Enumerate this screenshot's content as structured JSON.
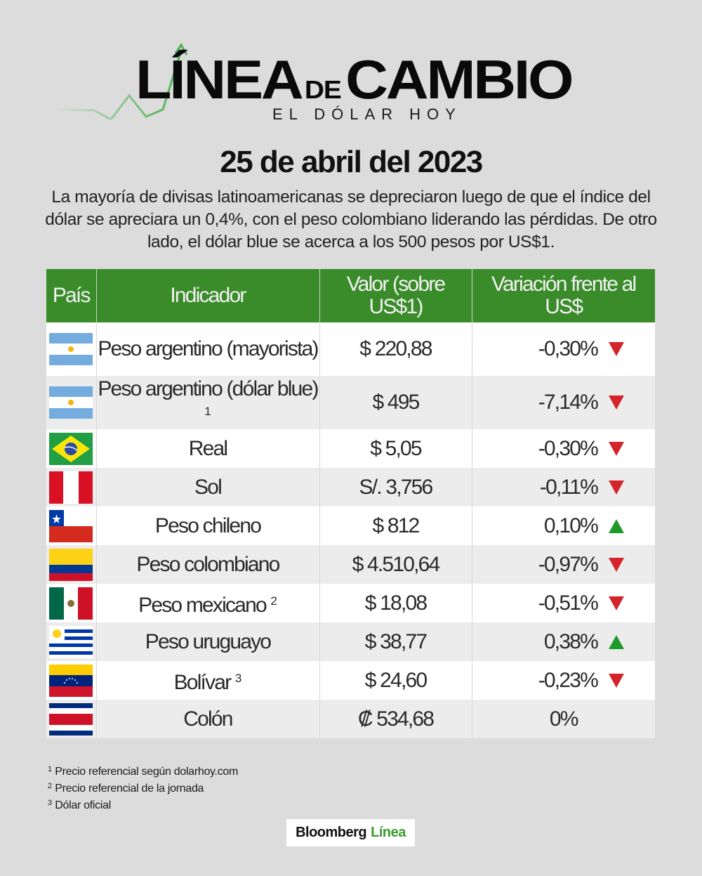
{
  "header": {
    "logo_main_left": "LÍNEA",
    "logo_de": "DE",
    "logo_main_right": "CAMBIO",
    "logo_subtitle": "EL DÓLAR HOY",
    "accent_color": "#3a8b2a"
  },
  "date": "25 de abril del 2023",
  "intro": "La mayoría de divisas latinoamericanas se depreciaron luego de que el índice del dólar se apreciara un 0,4%, con el peso colombiano liderando las pérdidas. De otro lado, el dólar blue se acerca a los 500 pesos por US$1.",
  "table": {
    "headers": [
      "País",
      "Indicador",
      "Valor (sobre US$1)",
      "Variación frente al US$"
    ],
    "rows": [
      {
        "flag": "argentina",
        "indicator": "Peso argentino (mayorista)",
        "note": "",
        "value": "$ 220,88",
        "variation": "-0,30%",
        "direction": "down"
      },
      {
        "flag": "argentina",
        "indicator": "Peso argentino (dólar blue)",
        "note": "1",
        "value": "$ 495",
        "variation": "-7,14%",
        "direction": "down"
      },
      {
        "flag": "brazil",
        "indicator": "Real",
        "note": "",
        "value": "$ 5,05",
        "variation": "-0,30%",
        "direction": "down"
      },
      {
        "flag": "peru",
        "indicator": "Sol",
        "note": "",
        "value": "S/. 3,756",
        "variation": "-0,11%",
        "direction": "down"
      },
      {
        "flag": "chile",
        "indicator": "Peso chileno",
        "note": "",
        "value": "$ 812",
        "variation": "0,10%",
        "direction": "up"
      },
      {
        "flag": "colombia",
        "indicator": "Peso colombiano",
        "note": "",
        "value": "$ 4.510,64",
        "variation": "-0,97%",
        "direction": "down"
      },
      {
        "flag": "mexico",
        "indicator": "Peso mexicano",
        "note": "2",
        "value": "$ 18,08",
        "variation": "-0,51%",
        "direction": "down"
      },
      {
        "flag": "uruguay",
        "indicator": "Peso uruguayo",
        "note": "",
        "value": "$ 38,77",
        "variation": "0,38%",
        "direction": "up"
      },
      {
        "flag": "venezuela",
        "indicator": "Bolívar",
        "note": "3",
        "value": "$ 24,60",
        "variation": "-0,23%",
        "direction": "down"
      },
      {
        "flag": "costa-rica",
        "indicator": "Colón",
        "note": "",
        "value": "₡ 534,68",
        "variation": "0%",
        "direction": "none"
      }
    ],
    "colors": {
      "down": "#d4232a",
      "up": "#1e9a2a",
      "header_bg": "#3a8b2a"
    }
  },
  "footnotes": [
    {
      "mark": "1",
      "text": "Precio referencial según dolarhoy.com"
    },
    {
      "mark": "2",
      "text": "Precio referencial de la jornada"
    },
    {
      "mark": "3",
      "text": "Dólar oficial"
    }
  ],
  "brand": {
    "part1": "Bloomberg",
    "part2": "Línea"
  }
}
